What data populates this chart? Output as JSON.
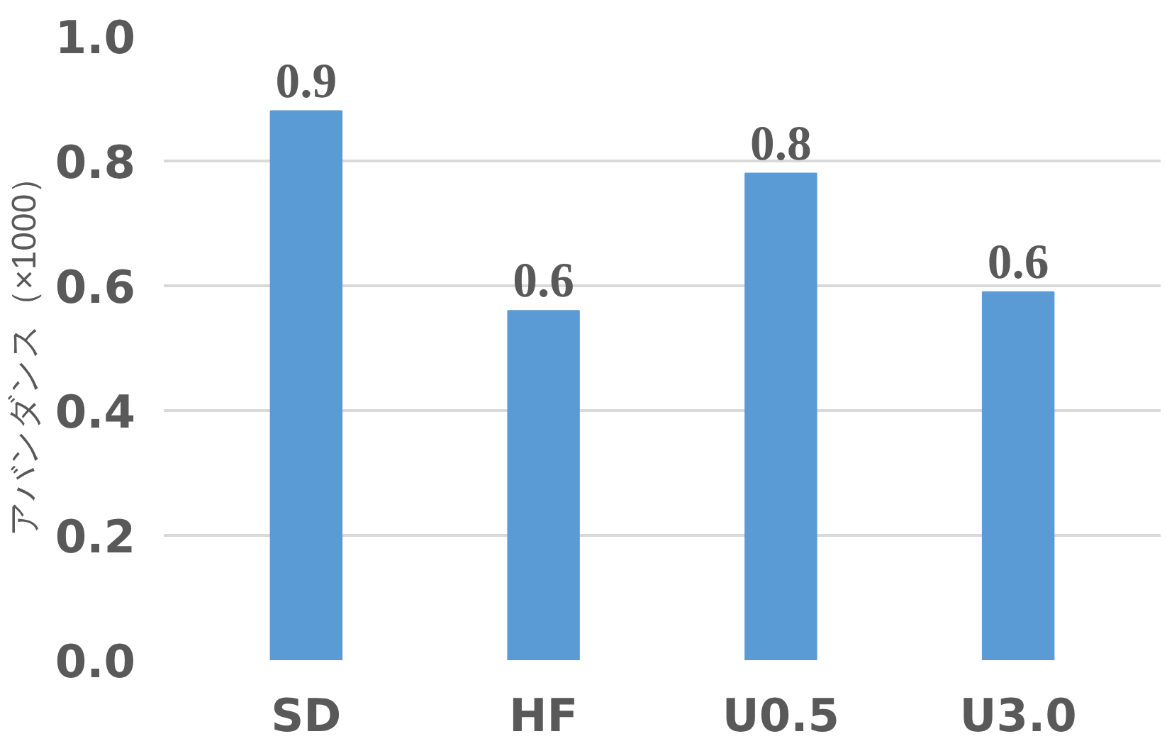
{
  "chart_data": {
    "type": "bar",
    "ylabel": "アバンダンス（×1000）",
    "categories": [
      "SD",
      "HF",
      "U0.5",
      "U3.0"
    ],
    "values": [
      0.88,
      0.56,
      0.78,
      0.59
    ],
    "value_labels": [
      "0.9",
      "0.6",
      "0.8",
      "0.6"
    ],
    "color": "#5b9bd5",
    "ylim": [
      0,
      1.0
    ],
    "yticks": [
      {
        "value": 0,
        "label": "0.0"
      },
      {
        "value": 0.2,
        "label": "0.2"
      },
      {
        "value": 0.4,
        "label": "0.4"
      },
      {
        "value": 0.6,
        "label": "0.6"
      },
      {
        "value": 0.8,
        "label": "0.8"
      },
      {
        "value": 1.0,
        "label": "1.0"
      }
    ],
    "grid": "y"
  }
}
